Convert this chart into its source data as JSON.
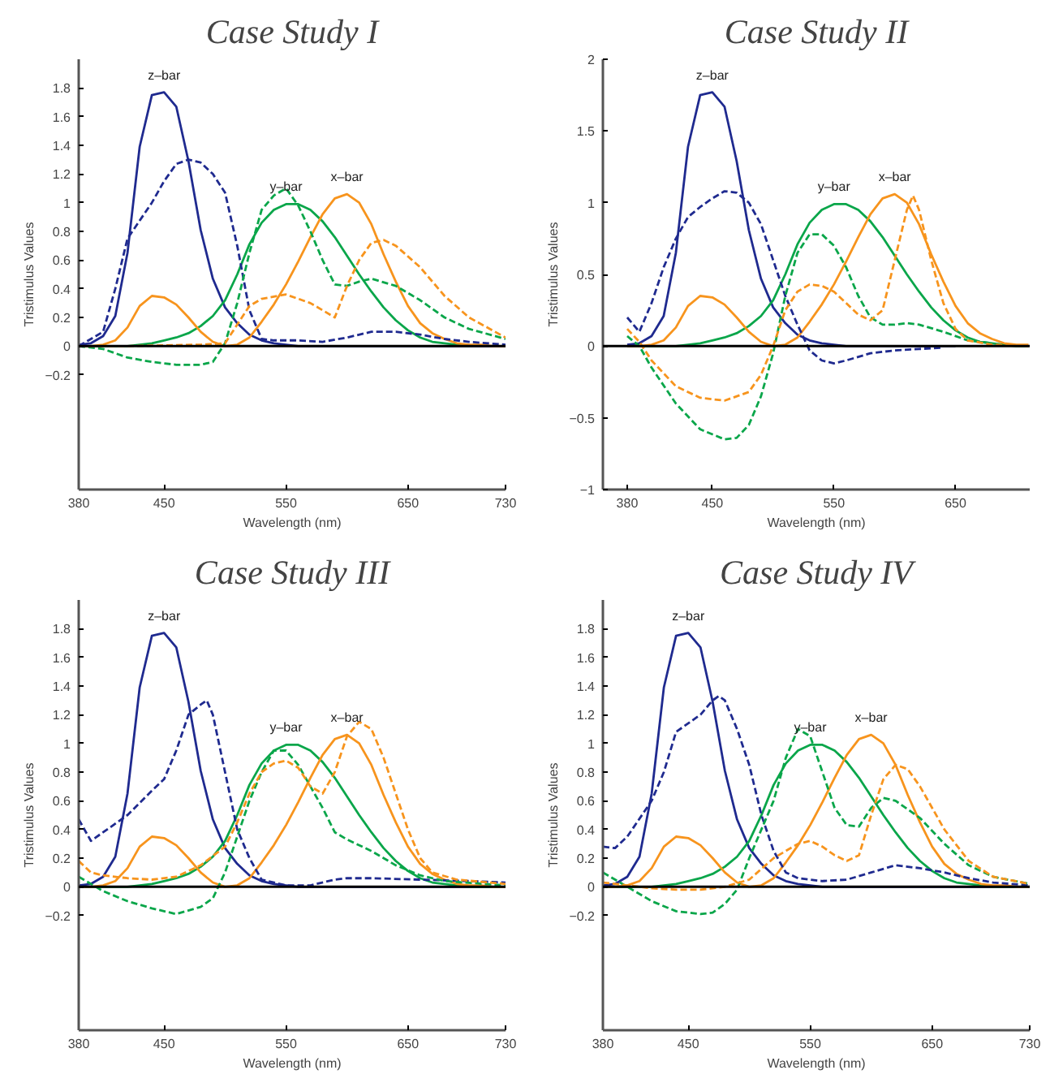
{
  "chart_data": [
    {
      "type": "line",
      "title": "Case Study I",
      "xlabel": "Wavelength (nm)",
      "ylabel": "Tristimulus Values",
      "xlim": [
        380,
        730
      ],
      "ylim": [
        -1,
        2
      ],
      "xticks": [
        380,
        450,
        550,
        650,
        730
      ],
      "yticks": [
        -0.2,
        0,
        0.2,
        0.4,
        0.6,
        0.8,
        1,
        1.2,
        1.4,
        1.6,
        1.8
      ],
      "grid": false,
      "x": [
        380,
        390,
        400,
        410,
        420,
        430,
        440,
        450,
        460,
        470,
        480,
        490,
        500,
        510,
        520,
        530,
        540,
        550,
        560,
        570,
        580,
        590,
        600,
        610,
        620,
        630,
        640,
        650,
        660,
        670,
        680,
        690,
        700,
        710,
        720,
        730
      ],
      "series": [
        {
          "color": "#1f2a8f",
          "line_style": "solid",
          "values": [
            0.01,
            0.02,
            0.07,
            0.21,
            0.65,
            1.39,
            1.75,
            1.77,
            1.67,
            1.29,
            0.81,
            0.47,
            0.27,
            0.16,
            0.08,
            0.04,
            0.02,
            0.01,
            0,
            0,
            0,
            0,
            0,
            0,
            0,
            0,
            0,
            0,
            0,
            0,
            0,
            0,
            0,
            0,
            0,
            0
          ]
        },
        {
          "color": "#0aa64a",
          "line_style": "solid",
          "values": [
            0,
            0,
            0,
            0,
            0,
            0.01,
            0.02,
            0.04,
            0.06,
            0.09,
            0.14,
            0.21,
            0.32,
            0.5,
            0.71,
            0.86,
            0.95,
            0.99,
            0.99,
            0.95,
            0.87,
            0.76,
            0.63,
            0.5,
            0.38,
            0.27,
            0.18,
            0.11,
            0.06,
            0.03,
            0.02,
            0.01,
            0,
            null,
            null,
            null
          ]
        },
        {
          "color": "#f7941d",
          "line_style": "solid",
          "values": [
            0,
            0,
            0.01,
            0.04,
            0.13,
            0.28,
            0.35,
            0.34,
            0.29,
            0.2,
            0.1,
            0.03,
            0,
            0.01,
            0.06,
            0.17,
            0.29,
            0.43,
            0.59,
            0.76,
            0.92,
            1.03,
            1.06,
            1,
            0.85,
            0.64,
            0.45,
            0.28,
            0.16,
            0.09,
            0.05,
            0.02,
            0.01,
            0.01,
            0,
            0
          ]
        },
        {
          "color": "#1f2a8f",
          "line_style": "dashed",
          "x": [
            380,
            400,
            410,
            420,
            440,
            450,
            460,
            470,
            480,
            490,
            500,
            510,
            520,
            530,
            540,
            560,
            580,
            600,
            620,
            640,
            660,
            680,
            700,
            730
          ],
          "values": [
            0,
            0.1,
            0.4,
            0.75,
            1,
            1.15,
            1.27,
            1.3,
            1.28,
            1.2,
            1.07,
            0.7,
            0.25,
            0.05,
            0.04,
            0.04,
            0.03,
            0.06,
            0.1,
            0.1,
            0.08,
            0.05,
            0.03,
            0.01
          ]
        },
        {
          "color": "#0aa64a",
          "line_style": "dashed",
          "x": [
            380,
            400,
            420,
            440,
            460,
            480,
            490,
            500,
            510,
            520,
            530,
            540,
            550,
            560,
            570,
            580,
            590,
            600,
            610,
            620,
            640,
            660,
            680,
            700,
            730
          ],
          "values": [
            0,
            -0.02,
            -0.08,
            -0.11,
            -0.13,
            -0.13,
            -0.11,
            0.02,
            0.3,
            0.65,
            0.95,
            1.05,
            1.1,
            0.98,
            0.8,
            0.6,
            0.43,
            0.42,
            0.45,
            0.47,
            0.42,
            0.32,
            0.2,
            0.12,
            0.05
          ]
        },
        {
          "color": "#f7941d",
          "line_style": "dashed",
          "x": [
            380,
            420,
            480,
            500,
            510,
            520,
            530,
            550,
            570,
            580,
            590,
            600,
            610,
            620,
            630,
            640,
            660,
            680,
            700,
            730
          ],
          "values": [
            0,
            0,
            0.01,
            0.02,
            0.15,
            0.28,
            0.33,
            0.36,
            0.3,
            0.25,
            0.2,
            0.42,
            0.6,
            0.72,
            0.74,
            0.7,
            0.55,
            0.35,
            0.2,
            0.06
          ]
        }
      ],
      "ref_lines": [
        {
          "axis": "y",
          "value": 0,
          "color": "#000000"
        }
      ],
      "annotations": [
        "z–bar",
        "y–bar",
        "x–bar"
      ]
    },
    {
      "type": "line",
      "title": "Case Study II",
      "xlabel": "Wavelength (nm)",
      "ylabel": "Tristimulus Values",
      "xlim": [
        360,
        711
      ],
      "ylim": [
        -1,
        2
      ],
      "xticks": [
        380,
        450,
        550,
        650
      ],
      "yticks": [
        -1,
        -0.5,
        0,
        0.5,
        1,
        1.5,
        2
      ],
      "grid": false,
      "x": [
        380,
        390,
        400,
        410,
        420,
        430,
        440,
        450,
        460,
        470,
        480,
        490,
        500,
        510,
        520,
        530,
        540,
        550,
        560,
        570,
        580,
        590,
        600,
        610,
        620,
        630,
        640,
        650,
        660,
        670,
        680,
        690,
        700,
        710
      ],
      "series": [
        {
          "color": "#1f2a8f",
          "line_style": "solid",
          "values": [
            0.01,
            0.02,
            0.07,
            0.21,
            0.65,
            1.39,
            1.75,
            1.77,
            1.67,
            1.29,
            0.81,
            0.47,
            0.27,
            0.16,
            0.08,
            0.04,
            0.02,
            0.01,
            0,
            0,
            0,
            0,
            0,
            0,
            0,
            0,
            0,
            0,
            null,
            null,
            null,
            null,
            null,
            null
          ]
        },
        {
          "color": "#0aa64a",
          "line_style": "solid",
          "values": [
            0,
            0,
            0,
            0,
            0,
            0.01,
            0.02,
            0.04,
            0.06,
            0.09,
            0.14,
            0.21,
            0.32,
            0.5,
            0.71,
            0.86,
            0.95,
            0.99,
            0.99,
            0.95,
            0.87,
            0.76,
            0.63,
            0.5,
            0.38,
            0.27,
            0.18,
            0.11,
            0.06,
            0.03,
            0.02,
            0.01,
            0,
            0
          ]
        },
        {
          "color": "#f7941d",
          "line_style": "solid",
          "values": [
            0,
            0,
            0.01,
            0.04,
            0.13,
            0.28,
            0.35,
            0.34,
            0.29,
            0.2,
            0.1,
            0.03,
            0,
            0.01,
            0.06,
            0.17,
            0.29,
            0.43,
            0.59,
            0.76,
            0.92,
            1.03,
            1.06,
            1,
            0.85,
            0.64,
            0.45,
            0.28,
            0.16,
            0.09,
            0.05,
            0.02,
            0.01,
            0.01
          ]
        },
        {
          "color": "#1f2a8f",
          "line_style": "dashed",
          "x": [
            380,
            390,
            400,
            410,
            420,
            430,
            440,
            450,
            460,
            470,
            480,
            490,
            500,
            510,
            520,
            530,
            540,
            550,
            560,
            580,
            600,
            620,
            640
          ],
          "values": [
            0.2,
            0.1,
            0.3,
            0.55,
            0.75,
            0.9,
            0.97,
            1.03,
            1.08,
            1.07,
            1,
            0.85,
            0.6,
            0.35,
            0.15,
            -0.03,
            -0.1,
            -0.12,
            -0.1,
            -0.05,
            -0.03,
            -0.02,
            -0.01
          ]
        },
        {
          "color": "#0aa64a",
          "line_style": "dashed",
          "x": [
            380,
            390,
            400,
            420,
            440,
            460,
            470,
            480,
            490,
            500,
            510,
            520,
            530,
            540,
            550,
            560,
            570,
            580,
            590,
            600,
            610,
            620,
            640,
            660,
            680
          ],
          "values": [
            0.07,
            0,
            -0.15,
            -0.4,
            -0.58,
            -0.65,
            -0.64,
            -0.55,
            -0.35,
            -0.05,
            0.35,
            0.65,
            0.78,
            0.78,
            0.7,
            0.55,
            0.35,
            0.2,
            0.15,
            0.15,
            0.16,
            0.15,
            0.1,
            0.04,
            0.02
          ]
        },
        {
          "color": "#f7941d",
          "line_style": "dashed",
          "x": [
            380,
            390,
            400,
            420,
            440,
            460,
            480,
            490,
            500,
            510,
            520,
            530,
            540,
            550,
            560,
            570,
            580,
            590,
            600,
            610,
            615,
            620,
            630,
            640,
            650,
            660,
            680,
            710
          ],
          "values": [
            0.12,
            0.03,
            -0.1,
            -0.28,
            -0.36,
            -0.38,
            -0.32,
            -0.2,
            0,
            0.25,
            0.38,
            0.43,
            0.42,
            0.38,
            0.3,
            0.22,
            0.18,
            0.25,
            0.6,
            0.95,
            1.05,
            0.95,
            0.6,
            0.3,
            0.12,
            0.04,
            0.01,
            0
          ]
        }
      ],
      "ref_lines": [
        {
          "axis": "y",
          "value": 0,
          "color": "#000000"
        }
      ],
      "annotations": [
        "z–bar",
        "y–bar",
        "x–bar"
      ]
    },
    {
      "type": "line",
      "title": "Case Study III",
      "xlabel": "Wavelength (nm)",
      "ylabel": "Tristimulus Values",
      "xlim": [
        380,
        730
      ],
      "ylim": [
        -1,
        2
      ],
      "xticks": [
        380,
        450,
        550,
        650,
        730
      ],
      "yticks": [
        -0.2,
        0,
        0.2,
        0.4,
        0.6,
        0.8,
        1,
        1.2,
        1.4,
        1.6,
        1.8
      ],
      "grid": false,
      "x": [
        380,
        390,
        400,
        410,
        420,
        430,
        440,
        450,
        460,
        470,
        480,
        490,
        500,
        510,
        520,
        530,
        540,
        550,
        560,
        570,
        580,
        590,
        600,
        610,
        620,
        630,
        640,
        650,
        660,
        670,
        680,
        690,
        700,
        710,
        720,
        730
      ],
      "series": [
        {
          "color": "#1f2a8f",
          "line_style": "solid",
          "values": [
            0.01,
            0.02,
            0.07,
            0.21,
            0.65,
            1.39,
            1.75,
            1.77,
            1.67,
            1.29,
            0.81,
            0.47,
            0.27,
            0.16,
            0.08,
            0.04,
            0.02,
            0.01,
            0,
            0,
            0,
            0,
            0,
            0,
            0,
            0,
            0,
            0,
            0,
            0,
            0,
            0,
            0,
            0,
            0,
            0
          ]
        },
        {
          "color": "#0aa64a",
          "line_style": "solid",
          "values": [
            0,
            0,
            0,
            0,
            0,
            0.01,
            0.02,
            0.04,
            0.06,
            0.09,
            0.14,
            0.21,
            0.32,
            0.5,
            0.71,
            0.86,
            0.95,
            0.99,
            0.99,
            0.95,
            0.87,
            0.76,
            0.63,
            0.5,
            0.38,
            0.27,
            0.18,
            0.11,
            0.06,
            0.03,
            0.02,
            0.01,
            0,
            0,
            0,
            0
          ]
        },
        {
          "color": "#f7941d",
          "line_style": "solid",
          "values": [
            0,
            0,
            0.01,
            0.04,
            0.13,
            0.28,
            0.35,
            0.34,
            0.29,
            0.2,
            0.1,
            0.03,
            0,
            0.01,
            0.06,
            0.17,
            0.29,
            0.43,
            0.59,
            0.76,
            0.92,
            1.03,
            1.06,
            1,
            0.85,
            0.64,
            0.45,
            0.28,
            0.16,
            0.09,
            0.05,
            0.02,
            0.01,
            0.01,
            0,
            0
          ]
        },
        {
          "color": "#1f2a8f",
          "line_style": "dashed",
          "x": [
            380,
            390,
            400,
            420,
            440,
            450,
            460,
            470,
            480,
            485,
            490,
            500,
            510,
            520,
            530,
            550,
            570,
            590,
            600,
            620,
            660,
            700,
            730
          ],
          "values": [
            0.47,
            0.32,
            0.38,
            0.5,
            0.67,
            0.75,
            0.95,
            1.2,
            1.27,
            1.3,
            1.2,
            0.8,
            0.4,
            0.2,
            0.05,
            0.01,
            0.01,
            0.05,
            0.06,
            0.06,
            0.05,
            0.04,
            0.03
          ]
        },
        {
          "color": "#0aa64a",
          "line_style": "dashed",
          "x": [
            380,
            400,
            420,
            440,
            460,
            480,
            490,
            500,
            510,
            520,
            530,
            540,
            550,
            560,
            570,
            580,
            590,
            600,
            620,
            640,
            660,
            680,
            730
          ],
          "values": [
            0.07,
            -0.03,
            -0.1,
            -0.15,
            -0.19,
            -0.14,
            -0.08,
            0.1,
            0.35,
            0.6,
            0.8,
            0.95,
            0.95,
            0.85,
            0.7,
            0.55,
            0.38,
            0.33,
            0.25,
            0.15,
            0.08,
            0.04,
            0.01
          ]
        },
        {
          "color": "#f7941d",
          "line_style": "dashed",
          "x": [
            380,
            390,
            400,
            420,
            440,
            460,
            480,
            500,
            510,
            520,
            530,
            540,
            550,
            560,
            570,
            580,
            590,
            600,
            610,
            620,
            630,
            640,
            650,
            660,
            670,
            690,
            730
          ],
          "values": [
            0.18,
            0.1,
            0.08,
            0.06,
            0.05,
            0.07,
            0.15,
            0.28,
            0.45,
            0.65,
            0.8,
            0.86,
            0.88,
            0.83,
            0.7,
            0.65,
            0.8,
            1.05,
            1.15,
            1.1,
            0.9,
            0.65,
            0.4,
            0.2,
            0.1,
            0.05,
            0.02
          ]
        }
      ],
      "ref_lines": [
        {
          "axis": "y",
          "value": 0,
          "color": "#000000"
        }
      ],
      "annotations": [
        "z–bar",
        "y–bar",
        "x–bar"
      ]
    },
    {
      "type": "line",
      "title": "Case Study IV",
      "xlabel": "Wavelength (nm)",
      "ylabel": "Tristimulus Values",
      "xlim": [
        380,
        730
      ],
      "ylim": [
        -1,
        2
      ],
      "xticks": [
        380,
        450,
        550,
        650,
        730
      ],
      "yticks": [
        -0.2,
        0,
        0.2,
        0.4,
        0.6,
        0.8,
        1,
        1.2,
        1.4,
        1.6,
        1.8
      ],
      "grid": false,
      "x": [
        380,
        390,
        400,
        410,
        420,
        430,
        440,
        450,
        460,
        470,
        480,
        490,
        500,
        510,
        520,
        530,
        540,
        550,
        560,
        570,
        580,
        590,
        600,
        610,
        620,
        630,
        640,
        650,
        660,
        670,
        680,
        690,
        700,
        710,
        720,
        730
      ],
      "series": [
        {
          "color": "#1f2a8f",
          "line_style": "solid",
          "values": [
            0.01,
            0.02,
            0.07,
            0.21,
            0.65,
            1.39,
            1.75,
            1.77,
            1.67,
            1.29,
            0.81,
            0.47,
            0.27,
            0.16,
            0.08,
            0.04,
            0.02,
            0.01,
            0,
            0,
            0,
            0,
            0,
            0,
            0,
            0,
            0,
            0,
            0,
            0,
            0,
            0,
            0,
            0,
            0,
            0
          ]
        },
        {
          "color": "#0aa64a",
          "line_style": "solid",
          "values": [
            0,
            0,
            0,
            0,
            0,
            0.01,
            0.02,
            0.04,
            0.06,
            0.09,
            0.14,
            0.21,
            0.32,
            0.5,
            0.71,
            0.86,
            0.95,
            0.99,
            0.99,
            0.95,
            0.87,
            0.76,
            0.63,
            0.5,
            0.38,
            0.27,
            0.18,
            0.11,
            0.06,
            0.03,
            0.02,
            0.01,
            0,
            0,
            0,
            0
          ]
        },
        {
          "color": "#f7941d",
          "line_style": "solid",
          "values": [
            0,
            0,
            0.01,
            0.04,
            0.13,
            0.28,
            0.35,
            0.34,
            0.29,
            0.2,
            0.1,
            0.03,
            0,
            0.01,
            0.06,
            0.17,
            0.29,
            0.43,
            0.59,
            0.76,
            0.92,
            1.03,
            1.06,
            1,
            0.85,
            0.64,
            0.45,
            0.28,
            0.16,
            0.09,
            0.05,
            0.02,
            0.01,
            0.01,
            0,
            0
          ]
        },
        {
          "color": "#1f2a8f",
          "line_style": "dashed",
          "x": [
            380,
            390,
            400,
            420,
            430,
            440,
            460,
            470,
            475,
            480,
            490,
            500,
            510,
            520,
            530,
            540,
            560,
            580,
            600,
            620,
            640,
            660,
            680,
            700,
            730
          ],
          "values": [
            0.28,
            0.27,
            0.35,
            0.6,
            0.8,
            1.08,
            1.2,
            1.3,
            1.33,
            1.3,
            1.1,
            0.85,
            0.5,
            0.25,
            0.1,
            0.06,
            0.04,
            0.05,
            0.1,
            0.15,
            0.13,
            0.1,
            0.06,
            0.03,
            0.01
          ]
        },
        {
          "color": "#0aa64a",
          "line_style": "dashed",
          "x": [
            380,
            400,
            420,
            440,
            460,
            470,
            480,
            490,
            500,
            510,
            520,
            530,
            540,
            550,
            560,
            570,
            580,
            590,
            600,
            610,
            620,
            640,
            660,
            680,
            700,
            730
          ],
          "values": [
            0.1,
            0,
            -0.1,
            -0.17,
            -0.19,
            -0.18,
            -0.12,
            -0.02,
            0.2,
            0.4,
            0.6,
            0.9,
            1.1,
            1.05,
            0.8,
            0.55,
            0.43,
            0.42,
            0.55,
            0.62,
            0.6,
            0.48,
            0.3,
            0.15,
            0.07,
            0.02
          ]
        },
        {
          "color": "#f7941d",
          "line_style": "dashed",
          "x": [
            380,
            400,
            420,
            440,
            460,
            480,
            500,
            520,
            540,
            550,
            560,
            570,
            580,
            590,
            600,
            610,
            620,
            630,
            640,
            660,
            680,
            700,
            730
          ],
          "values": [
            0.03,
            0.01,
            -0.01,
            -0.02,
            -0.02,
            0,
            0.05,
            0.2,
            0.3,
            0.32,
            0.28,
            0.22,
            0.18,
            0.22,
            0.5,
            0.75,
            0.85,
            0.82,
            0.7,
            0.4,
            0.18,
            0.07,
            0.02
          ]
        }
      ],
      "ref_lines": [
        {
          "axis": "y",
          "value": 0,
          "color": "#000000"
        }
      ],
      "annotations": [
        "z–bar",
        "y–bar",
        "x–bar"
      ]
    }
  ]
}
